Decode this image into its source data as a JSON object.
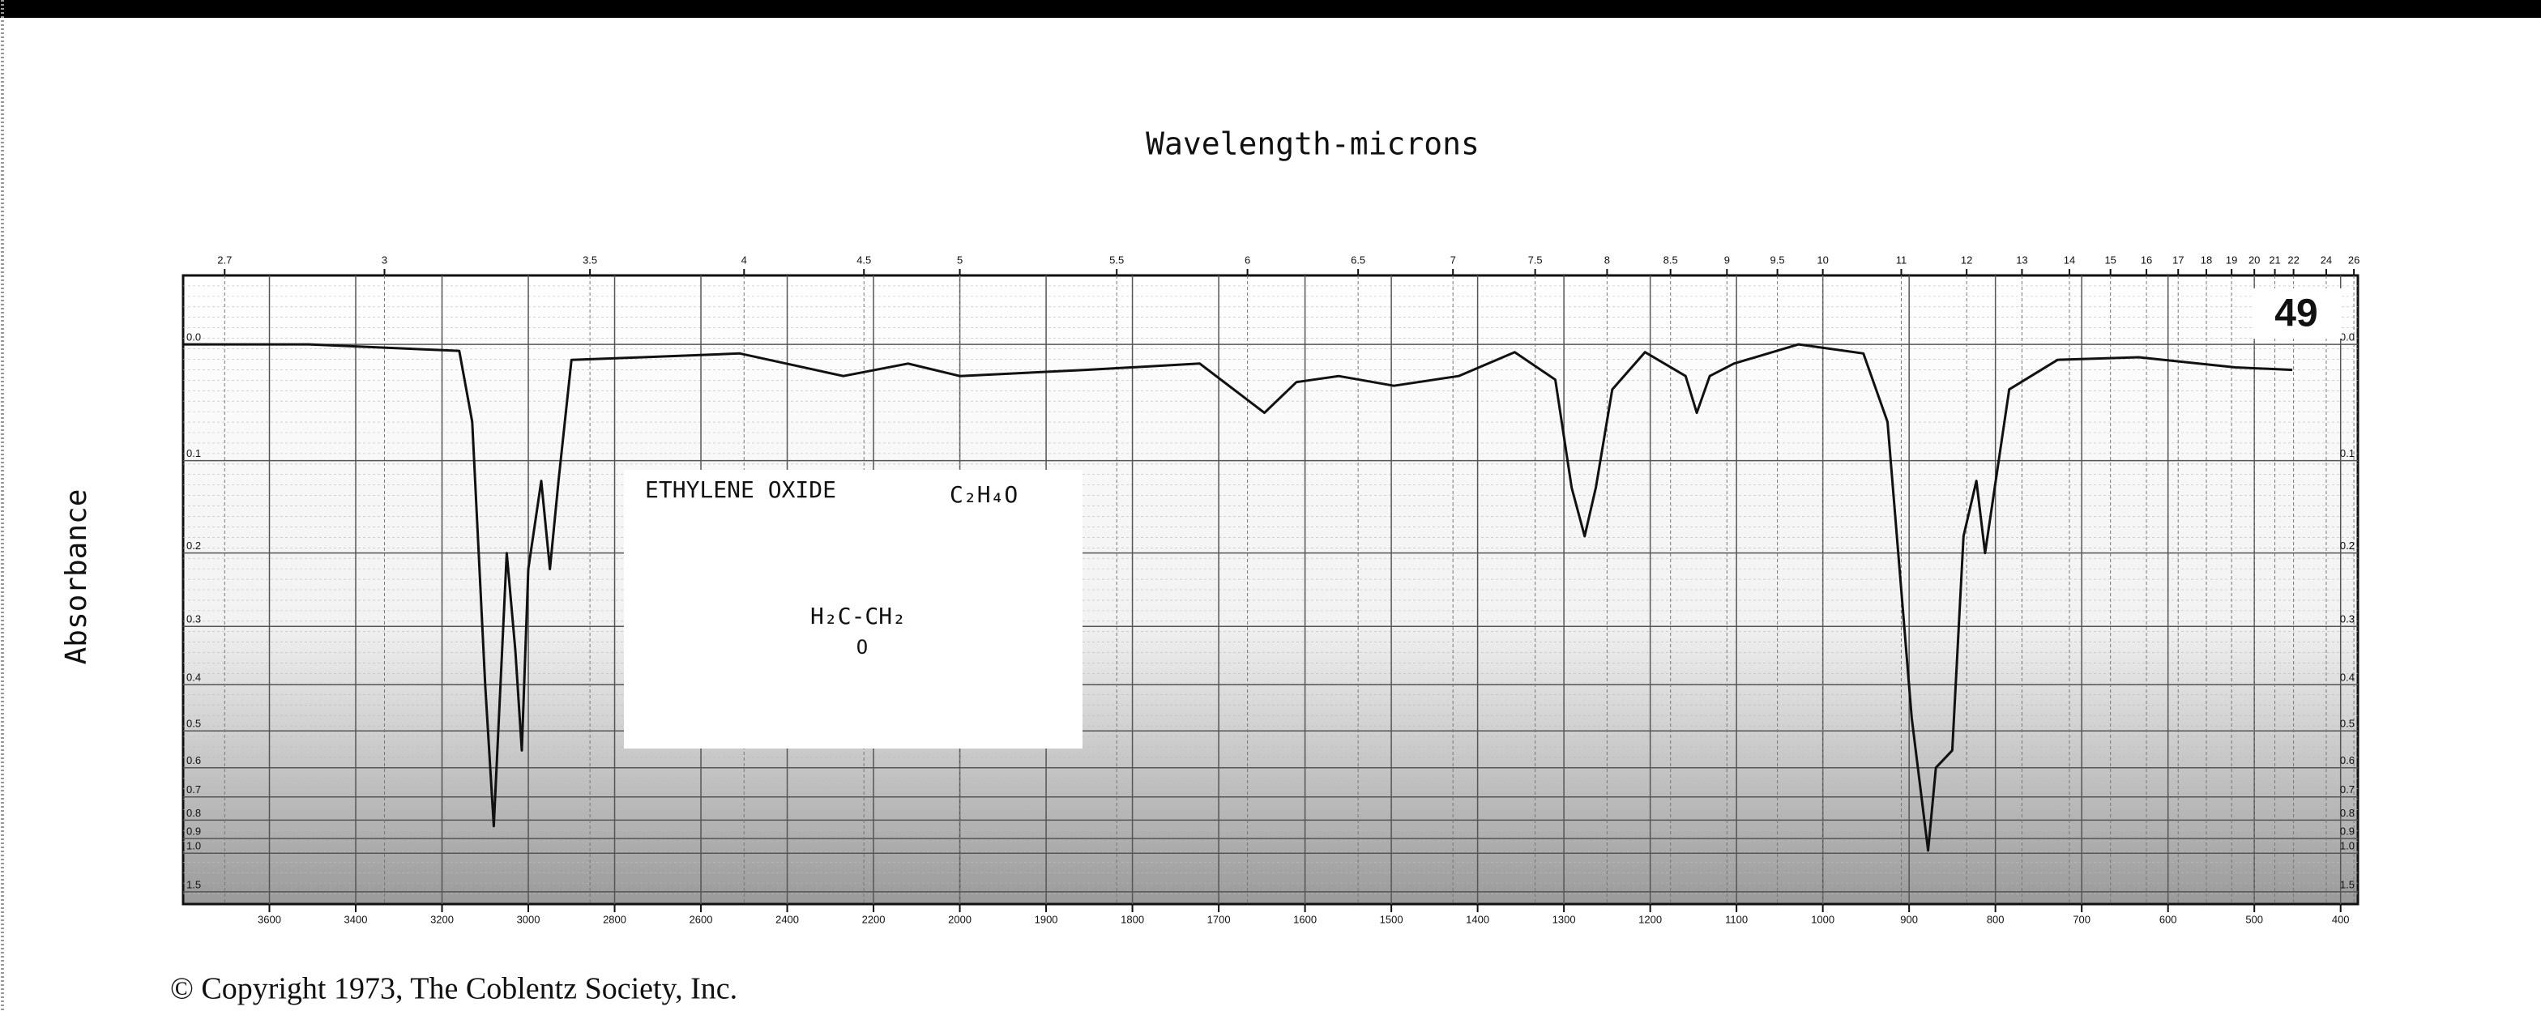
{
  "chart_data": {
    "type": "line",
    "title": "Wavelength-microns",
    "y_label": "Absorbance",
    "spectrum_number": "49",
    "compound": "ETHYLENE OXIDE",
    "formula": "C₂H₄O",
    "structure": "H₂C-CH₂",
    "structure_bridge": "O",
    "copyright": "© Copyright 1973, The Coblentz Society, Inc.",
    "color": "#111111",
    "x": [
      3800,
      3510,
      3160,
      3130,
      3100,
      3080,
      3050,
      3030,
      3015,
      3000,
      2970,
      2950,
      2930,
      2900,
      2735,
      2510,
      2270,
      2120,
      2000,
      1854,
      1722,
      1647,
      1610,
      1561,
      1497,
      1422,
      1357,
      1310,
      1291,
      1276,
      1263,
      1244,
      1206,
      1159,
      1146,
      1131,
      1103,
      1028,
      953,
      925,
      897,
      878,
      869,
      850,
      837,
      822,
      812,
      784,
      728,
      634,
      522,
      456
    ],
    "values": [
      0,
      0,
      0.005,
      0.064,
      0.4,
      0.83,
      0.2,
      0.34,
      0.55,
      0.22,
      0.12,
      0.22,
      0.12,
      0.012,
      0.01,
      0.007,
      0.025,
      0.015,
      0.025,
      0.02,
      0.015,
      0.056,
      0.03,
      0.025,
      0.033,
      0.025,
      0.006,
      0.028,
      0.127,
      0.18,
      0.127,
      0.036,
      0.006,
      0.025,
      0.056,
      0.025,
      0.015,
      0,
      0.007,
      0.064,
      0.47,
      0.98,
      0.6,
      0.55,
      0.18,
      0.12,
      0.2,
      0.036,
      0.012,
      0.01,
      0.018,
      0.02
    ],
    "xlim": [
      3800,
      380
    ],
    "xscale_break": 2000,
    "xticks": [
      3600,
      3400,
      3200,
      3000,
      2800,
      2600,
      2400,
      2200,
      2000,
      1900,
      1800,
      1700,
      1600,
      1500,
      1400,
      1300,
      1200,
      1100,
      1000,
      900,
      800,
      700,
      600,
      500,
      400
    ],
    "x2ticks": [
      2.7,
      3.0,
      3.5,
      4.0,
      4.5,
      5.0,
      5.5,
      6.0,
      6.5,
      7.0,
      7.5,
      8.0,
      8.5,
      9.0,
      9.5,
      10,
      11,
      12,
      13,
      14,
      15,
      16,
      17,
      18,
      19,
      20,
      21,
      22,
      24,
      26
    ],
    "ylim": [
      -0.05,
      2
    ],
    "yscale": "transmittance",
    "yticks": [
      {
        "value": 0,
        "label": "0.0"
      },
      0.1,
      0.2,
      0.3,
      0.4,
      0.5,
      0.6,
      0.7,
      0.8,
      0.9,
      {
        "value": 1,
        "label": "1.0"
      },
      1.5
    ],
    "grid": true
  }
}
